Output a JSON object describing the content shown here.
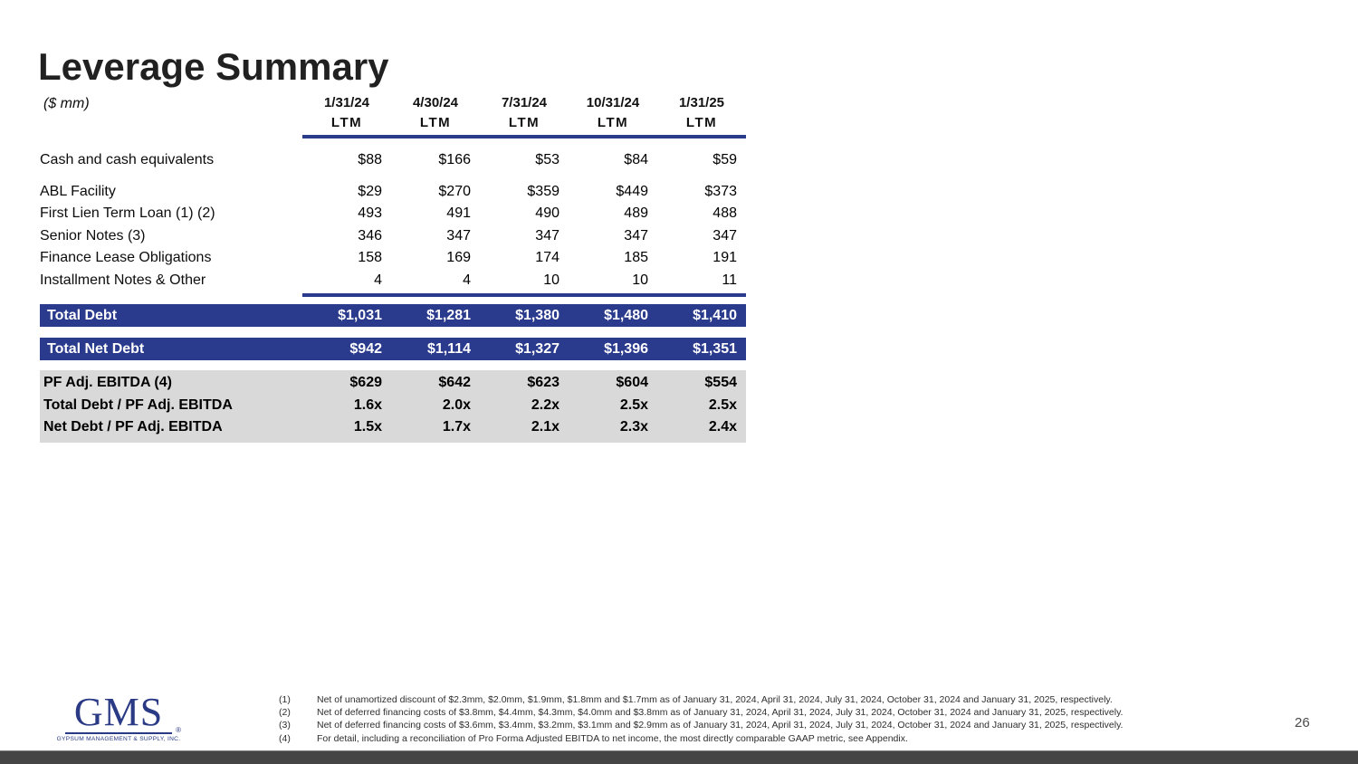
{
  "slide": {
    "title": "Leverage Summary",
    "subtitle": "($ mm)",
    "page_number": "26"
  },
  "logo": {
    "name": "GMS",
    "registered_mark": "®",
    "tagline": "GYPSUM MANAGEMENT & SUPPLY, INC."
  },
  "colors": {
    "navy": "#2a3a8c",
    "gray_block": "#d9d9d9",
    "logo_navy": "#2a3a85"
  },
  "table": {
    "columns": [
      {
        "date": "1/31/24",
        "period": "LTM"
      },
      {
        "date": "4/30/24",
        "period": "LTM"
      },
      {
        "date": "7/31/24",
        "period": "LTM"
      },
      {
        "date": "10/31/24",
        "period": "LTM"
      },
      {
        "date": "1/31/25",
        "period": "LTM"
      }
    ],
    "cash_row": {
      "label": "Cash and cash equivalents",
      "values": [
        "$88",
        "$166",
        "$53",
        "$84",
        "$59"
      ]
    },
    "debt_rows": [
      {
        "label": "ABL Facility",
        "values": [
          "$29",
          "$270",
          "$359",
          "$449",
          "$373"
        ]
      },
      {
        "label": "First Lien Term Loan (1) (2)",
        "values": [
          "493",
          "491",
          "490",
          "489",
          "488"
        ]
      },
      {
        "label": "Senior Notes (3)",
        "values": [
          "346",
          "347",
          "347",
          "347",
          "347"
        ]
      },
      {
        "label": "Finance Lease Obligations",
        "values": [
          "158",
          "169",
          "174",
          "185",
          "191"
        ]
      },
      {
        "label": "Installment Notes & Other",
        "values": [
          "4",
          "4",
          "10",
          "10",
          "11"
        ]
      }
    ],
    "total_debt": {
      "label": "Total Debt",
      "values": [
        "$1,031",
        "$1,281",
        "$1,380",
        "$1,480",
        "$1,410"
      ]
    },
    "total_net_debt": {
      "label": "Total Net Debt",
      "values": [
        "$942",
        "$1,114",
        "$1,327",
        "$1,396",
        "$1,351"
      ]
    },
    "ebitda_rows": [
      {
        "label": "PF Adj. EBITDA (4)",
        "values": [
          "$629",
          "$642",
          "$623",
          "$604",
          "$554"
        ]
      },
      {
        "label": "Total Debt / PF Adj. EBITDA",
        "values": [
          "1.6x",
          "2.0x",
          "2.2x",
          "2.5x",
          "2.5x"
        ]
      },
      {
        "label": "Net Debt / PF Adj. EBITDA",
        "values": [
          "1.5x",
          "1.7x",
          "2.1x",
          "2.3x",
          "2.4x"
        ]
      }
    ]
  },
  "footnotes": [
    {
      "num": "(1)",
      "text": "Net of unamortized discount of $2.3mm, $2.0mm, $1.9mm, $1.8mm and $1.7mm as of January 31, 2024, April 31, 2024, July 31, 2024, October 31, 2024 and January 31, 2025, respectively."
    },
    {
      "num": "(2)",
      "text": "Net of deferred financing costs of $3.8mm, $4.4mm, $4.3mm, $4.0mm and $3.8mm as of January 31, 2024, April 31, 2024, July 31, 2024, October 31, 2024 and January 31, 2025, respectively."
    },
    {
      "num": "(3)",
      "text": "Net of deferred financing costs of $3.6mm, $3.4mm, $3.2mm, $3.1mm and $2.9mm as of January 31, 2024, April 31, 2024, July 31, 2024, October 31, 2024 and January 31, 2025, respectively."
    },
    {
      "num": "(4)",
      "text": "For detail, including a reconciliation of Pro Forma Adjusted EBITDA to net income, the most directly comparable GAAP metric, see Appendix."
    }
  ]
}
